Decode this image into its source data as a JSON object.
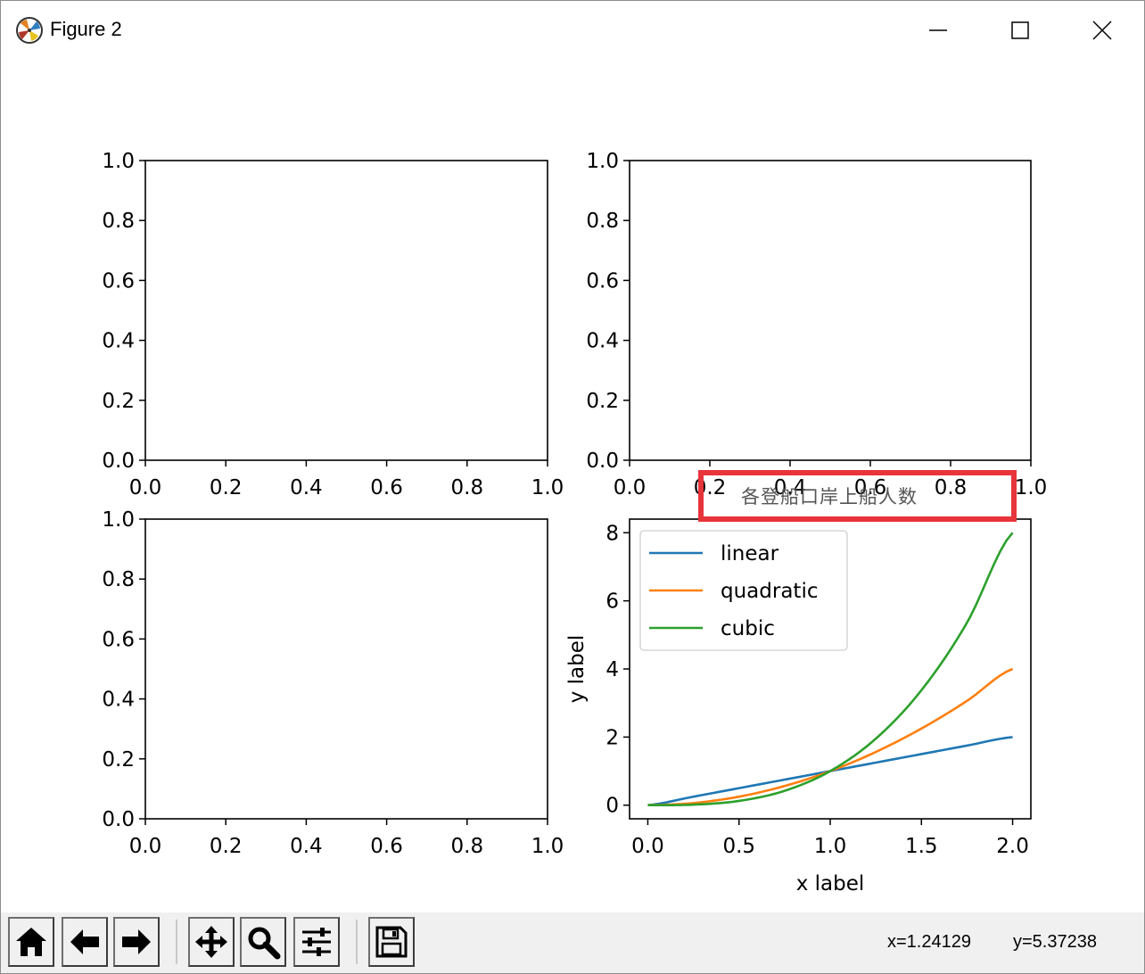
{
  "window": {
    "title": "Figure 2",
    "minimize_label": "Minimize",
    "maximize_label": "Maximize",
    "close_label": "Close"
  },
  "toolbar": {
    "buttons": [
      {
        "name": "home",
        "icon": "home-icon"
      },
      {
        "name": "back",
        "icon": "arrow-left-icon"
      },
      {
        "name": "forward",
        "icon": "arrow-right-icon"
      },
      {
        "name": "pan",
        "icon": "move-icon"
      },
      {
        "name": "zoom",
        "icon": "magnifier-icon"
      },
      {
        "name": "configure-subplots",
        "icon": "sliders-icon"
      },
      {
        "name": "save",
        "icon": "floppy-disk-icon"
      }
    ],
    "x_coord": "x=1.24129",
    "y_coord": "y=5.37238"
  },
  "colors": {
    "linear": "#1f77b4",
    "quadratic": "#ff7f0e",
    "cubic": "#2ca02c",
    "highlight_box": "#e8343b"
  },
  "chart_data": [
    {
      "type": "line",
      "position": "top-left",
      "xlim": [
        0,
        1
      ],
      "ylim": [
        0,
        1
      ],
      "xticks": [
        "0.0",
        "0.2",
        "0.4",
        "0.6",
        "0.8",
        "1.0"
      ],
      "yticks": [
        "0.0",
        "0.2",
        "0.4",
        "0.6",
        "0.8",
        "1.0"
      ],
      "series": []
    },
    {
      "type": "line",
      "position": "top-right",
      "xlim": [
        0,
        1
      ],
      "ylim": [
        0,
        1
      ],
      "xticks": [
        "0.0",
        "0.2",
        "0.4",
        "0.6",
        "0.8",
        "1.0"
      ],
      "yticks": [
        "0.0",
        "0.2",
        "0.4",
        "0.6",
        "0.8",
        "1.0"
      ],
      "series": []
    },
    {
      "type": "line",
      "position": "bottom-left",
      "xlim": [
        0,
        1
      ],
      "ylim": [
        0,
        1
      ],
      "xticks": [
        "0.0",
        "0.2",
        "0.4",
        "0.6",
        "0.8",
        "1.0"
      ],
      "yticks": [
        "0.0",
        "0.2",
        "0.4",
        "0.6",
        "0.8",
        "1.0"
      ],
      "series": []
    },
    {
      "type": "line",
      "position": "bottom-right",
      "title": "各登船口岸上船人数",
      "xlabel": "x label",
      "ylabel": "y label",
      "xlim": [
        -0.1,
        2.1
      ],
      "ylim": [
        -0.4,
        8.4
      ],
      "xticks": [
        "0.0",
        "0.5",
        "1.0",
        "1.5",
        "2.0"
      ],
      "yticks": [
        "0",
        "2",
        "4",
        "6",
        "8"
      ],
      "legend": "top-left",
      "series": [
        {
          "name": "linear",
          "x": [
            0,
            0.25,
            0.5,
            0.75,
            1.0,
            1.25,
            1.5,
            1.75,
            2.0
          ],
          "y": [
            0,
            0.25,
            0.5,
            0.75,
            1.0,
            1.25,
            1.5,
            1.75,
            2.0
          ]
        },
        {
          "name": "quadratic",
          "x": [
            0,
            0.25,
            0.5,
            0.75,
            1.0,
            1.25,
            1.5,
            1.75,
            2.0
          ],
          "y": [
            0,
            0.0625,
            0.25,
            0.5625,
            1.0,
            1.5625,
            2.25,
            3.0625,
            4.0
          ]
        },
        {
          "name": "cubic",
          "x": [
            0,
            0.25,
            0.5,
            0.75,
            1.0,
            1.25,
            1.5,
            1.75,
            2.0
          ],
          "y": [
            0,
            0.0156,
            0.125,
            0.4219,
            1.0,
            1.9531,
            3.375,
            5.3594,
            8.0
          ]
        }
      ]
    }
  ]
}
